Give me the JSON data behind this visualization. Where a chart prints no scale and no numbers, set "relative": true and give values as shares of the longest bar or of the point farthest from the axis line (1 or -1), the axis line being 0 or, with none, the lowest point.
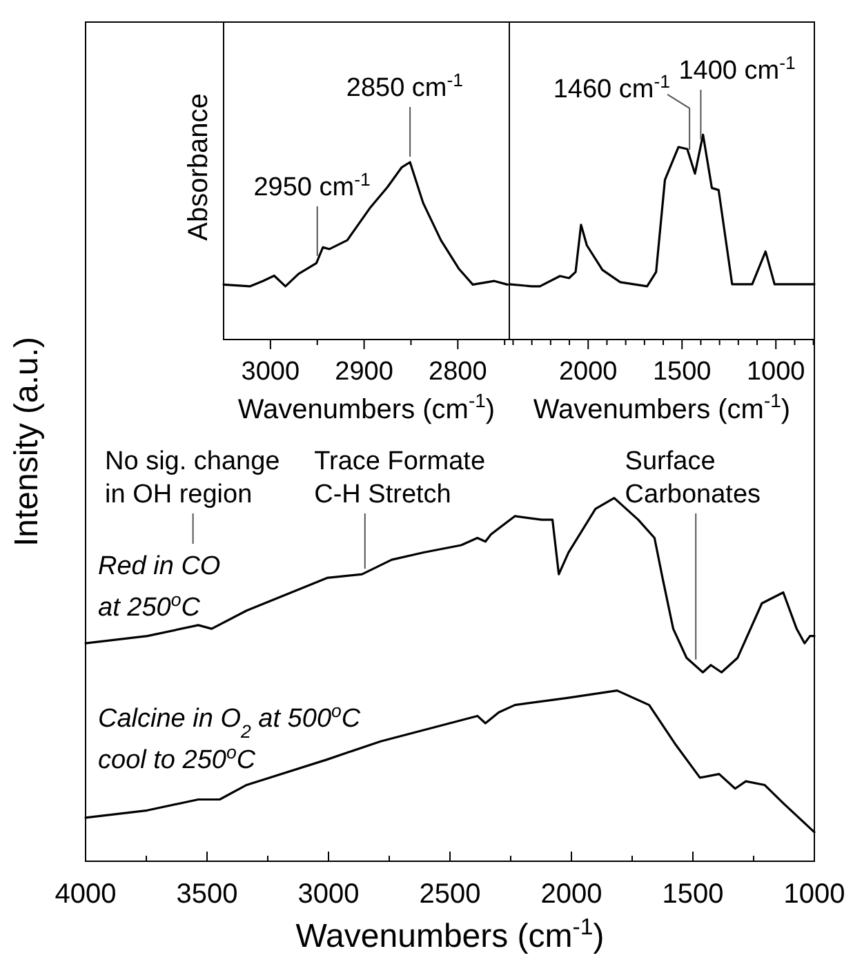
{
  "chart_data": [
    {
      "type": "line",
      "relative": true,
      "xlabel": "Wavenumbers (cm$^{-1}$)",
      "ylabel": "Intensity (a.u.)",
      "xlim": [
        4000,
        1000
      ],
      "xticks": [
        4000,
        {
          "value": 3750,
          "label": null
        },
        3500,
        {
          "value": 3250,
          "label": null
        },
        3000,
        {
          "value": 2750,
          "label": null
        },
        2500,
        {
          "value": 2250,
          "label": null
        },
        2000,
        {
          "value": 1750,
          "label": null
        },
        1500,
        {
          "value": 1250,
          "label": null
        },
        1000
      ],
      "tick_labels": "x",
      "legend": false,
      "annotations": [
        "No sig. change\nin OH region",
        {
          "text": "Trace Formate\nC-H Stretch",
          "x": 2850,
          "y": 0.79
        },
        {
          "text": "Surface\nCarbonates",
          "x": 1488,
          "y": 0.54
        }
      ],
      "series": [
        {
          "name": "Red in CO\nat 250$^{o}$C",
          "color": "#000000",
          "x": [
            4000,
            3746,
            3536,
            3481,
            3337,
            3006,
            2862,
            2740,
            2608,
            2454,
            2387,
            2354,
            2331,
            2233,
            2122,
            2078,
            2052,
            2012,
            1901,
            1824,
            1725,
            1658,
            1625,
            1581,
            1526,
            1459,
            1426,
            1382,
            1316,
            1216,
            1128,
            1073,
            1040,
            1018,
            1000
          ],
          "values": [
            0.6,
            0.62,
            0.65,
            0.64,
            0.69,
            0.78,
            0.79,
            0.83,
            0.85,
            0.87,
            0.89,
            0.88,
            0.9,
            0.95,
            0.94,
            0.94,
            0.79,
            0.85,
            0.97,
            1.0,
            0.94,
            0.89,
            0.78,
            0.64,
            0.56,
            0.52,
            0.54,
            0.52,
            0.56,
            0.71,
            0.74,
            0.64,
            0.6,
            0.62,
            0.62
          ]
        },
        {
          "name": "Calcine in O$_{2}$ at 500$^{o}$C\ncool to 250$^{o}$C",
          "color": "#000000",
          "x": [
            4000,
            3746,
            3536,
            3448,
            3337,
            3006,
            2918,
            2785,
            2387,
            2354,
            2299,
            2233,
            2012,
            1812,
            1680,
            1570,
            1471,
            1392,
            1326,
            1282,
            1205,
            1128,
            1000
          ],
          "values": [
            0.12,
            0.14,
            0.17,
            0.17,
            0.21,
            0.28,
            0.3,
            0.33,
            0.4,
            0.38,
            0.41,
            0.43,
            0.45,
            0.47,
            0.43,
            0.32,
            0.23,
            0.24,
            0.2,
            0.22,
            0.21,
            0.16,
            0.08
          ]
        }
      ]
    },
    {
      "type": "line",
      "relative": true,
      "xlabel": "Wavenumbers (cm$^{-1}$)",
      "ylabel": "Absorbance",
      "xlim": [
        3050,
        2745
      ],
      "xticks": [
        3000,
        {
          "value": 2950,
          "label": null
        },
        2900,
        {
          "value": 2850,
          "label": null
        },
        2800,
        {
          "value": 2750,
          "label": null
        }
      ],
      "tick_labels": "x",
      "legend": false,
      "annotations": [
        {
          "text": "2950 cm$^{-1}$",
          "x": 2950,
          "y": 0.44
        },
        {
          "text": "2850 cm$^{-1}$",
          "x": 2851,
          "y": 1.0
        }
      ],
      "series": [
        {
          "color": "#000000",
          "x": [
            3050,
            3022,
            3008,
            2996,
            2984,
            2970,
            2951,
            2944,
            2937,
            2918,
            2894,
            2875,
            2860,
            2851,
            2837,
            2818,
            2799,
            2784,
            2761,
            2747
          ],
          "values": [
            0.31,
            0.3,
            0.33,
            0.36,
            0.3,
            0.37,
            0.43,
            0.52,
            0.51,
            0.56,
            0.74,
            0.86,
            0.97,
            1.0,
            0.77,
            0.56,
            0.4,
            0.31,
            0.33,
            0.31
          ]
        }
      ]
    },
    {
      "type": "line",
      "relative": true,
      "xlabel": "Wavenumbers (cm$^{-1}$)",
      "xlim": [
        2420,
        795
      ],
      "xticks": [
        {
          "value": 2400,
          "label": null
        },
        {
          "value": 2300,
          "label": null
        },
        {
          "value": 2200,
          "label": null
        },
        {
          "value": 2100,
          "label": null
        },
        2000,
        {
          "value": 1900,
          "label": null
        },
        {
          "value": 1800,
          "label": null
        },
        {
          "value": 1700,
          "label": null
        },
        {
          "value": 1600,
          "label": null
        },
        1500,
        {
          "value": 1400,
          "label": null
        },
        {
          "value": 1300,
          "label": null
        },
        {
          "value": 1200,
          "label": null
        },
        {
          "value": 1100,
          "label": null
        },
        1000,
        {
          "value": 900,
          "label": null
        },
        {
          "value": 800,
          "label": null
        }
      ],
      "tick_labels": "x",
      "legend": false,
      "annotations": [
        {
          "text": "1460 cm$^{-1}$",
          "x": 1460,
          "y": 0.9
        },
        {
          "text": "1400 cm$^{-1}$",
          "x": 1400,
          "y": 0.95
        }
      ],
      "series": [
        {
          "color": "#000000",
          "x": [
            2420,
            2300,
            2257,
            2150,
            2102,
            2067,
            2038,
            2007,
            1924,
            1829,
            1686,
            1638,
            1591,
            1519,
            1472,
            1431,
            1388,
            1341,
            1305,
            1233,
            1126,
            1055,
            1007,
            900,
            807,
            795
          ],
          "values": [
            0.27,
            0.26,
            0.26,
            0.31,
            0.3,
            0.33,
            0.56,
            0.46,
            0.34,
            0.28,
            0.26,
            0.33,
            0.78,
            0.94,
            0.93,
            0.81,
            1.0,
            0.74,
            0.73,
            0.27,
            0.27,
            0.43,
            0.27,
            0.27,
            0.27,
            0.27
          ]
        }
      ]
    }
  ]
}
